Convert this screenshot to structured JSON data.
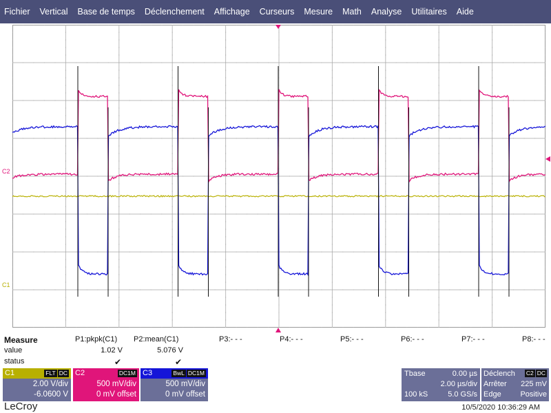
{
  "menu": [
    "Fichier",
    "Vertical",
    "Base de temps",
    "Déclenchement",
    "Affichage",
    "Curseurs",
    "Mesure",
    "Math",
    "Analyse",
    "Utilitaires",
    "Aide"
  ],
  "markers": {
    "c2": "C2",
    "c1": "C1"
  },
  "measure": {
    "title": "Measure",
    "row_value_label": "value",
    "row_status_label": "status",
    "p1": {
      "name": "P1:pkpk(C1)",
      "value": "1.02 V",
      "status": "✔"
    },
    "p2": {
      "name": "P2:mean(C1)",
      "value": "5.076 V",
      "status": "✔"
    },
    "p3": "P3:- - -",
    "p4": "P4:- - -",
    "p5": "P5:- - -",
    "p6": "P6:- - -",
    "p7": "P7:- - -",
    "p8": "P8:- - -"
  },
  "channels": {
    "c1": {
      "label": "C1",
      "tags": [
        "FLT",
        "DC"
      ],
      "vdiv": "2.00 V/div",
      "offset": "-6.0600 V",
      "color": "#b8b000"
    },
    "c2": {
      "label": "C2",
      "tags": [
        "DC1M"
      ],
      "vdiv": "500 mV/div",
      "offset": "0 mV offset",
      "color": "#e0157a"
    },
    "c3": {
      "label": "C3",
      "tags": [
        "BwL",
        "DC1M"
      ],
      "vdiv": "500 mV/div",
      "offset": "0 mV offset",
      "color": "#1515d8"
    }
  },
  "tbase": {
    "label": "Tbase",
    "delay": "0.00 µs",
    "tdiv": "2.00 µs/div",
    "samples": "100 kS",
    "rate": "5.0 GS/s"
  },
  "trigger": {
    "label": "Déclench",
    "tags": [
      "C2",
      "DC"
    ],
    "mode": "Arrêter",
    "level": "225 mV",
    "type": "Edge",
    "slope": "Positive"
  },
  "brand": "LeCroy",
  "timestamp": "10/5/2020 10:36:29 AM",
  "colors": {
    "menubar": "#4a4f78",
    "panel": "#6b6f98",
    "c1": "#b8b000",
    "c2": "#e0157a",
    "c3": "#1515d8"
  }
}
